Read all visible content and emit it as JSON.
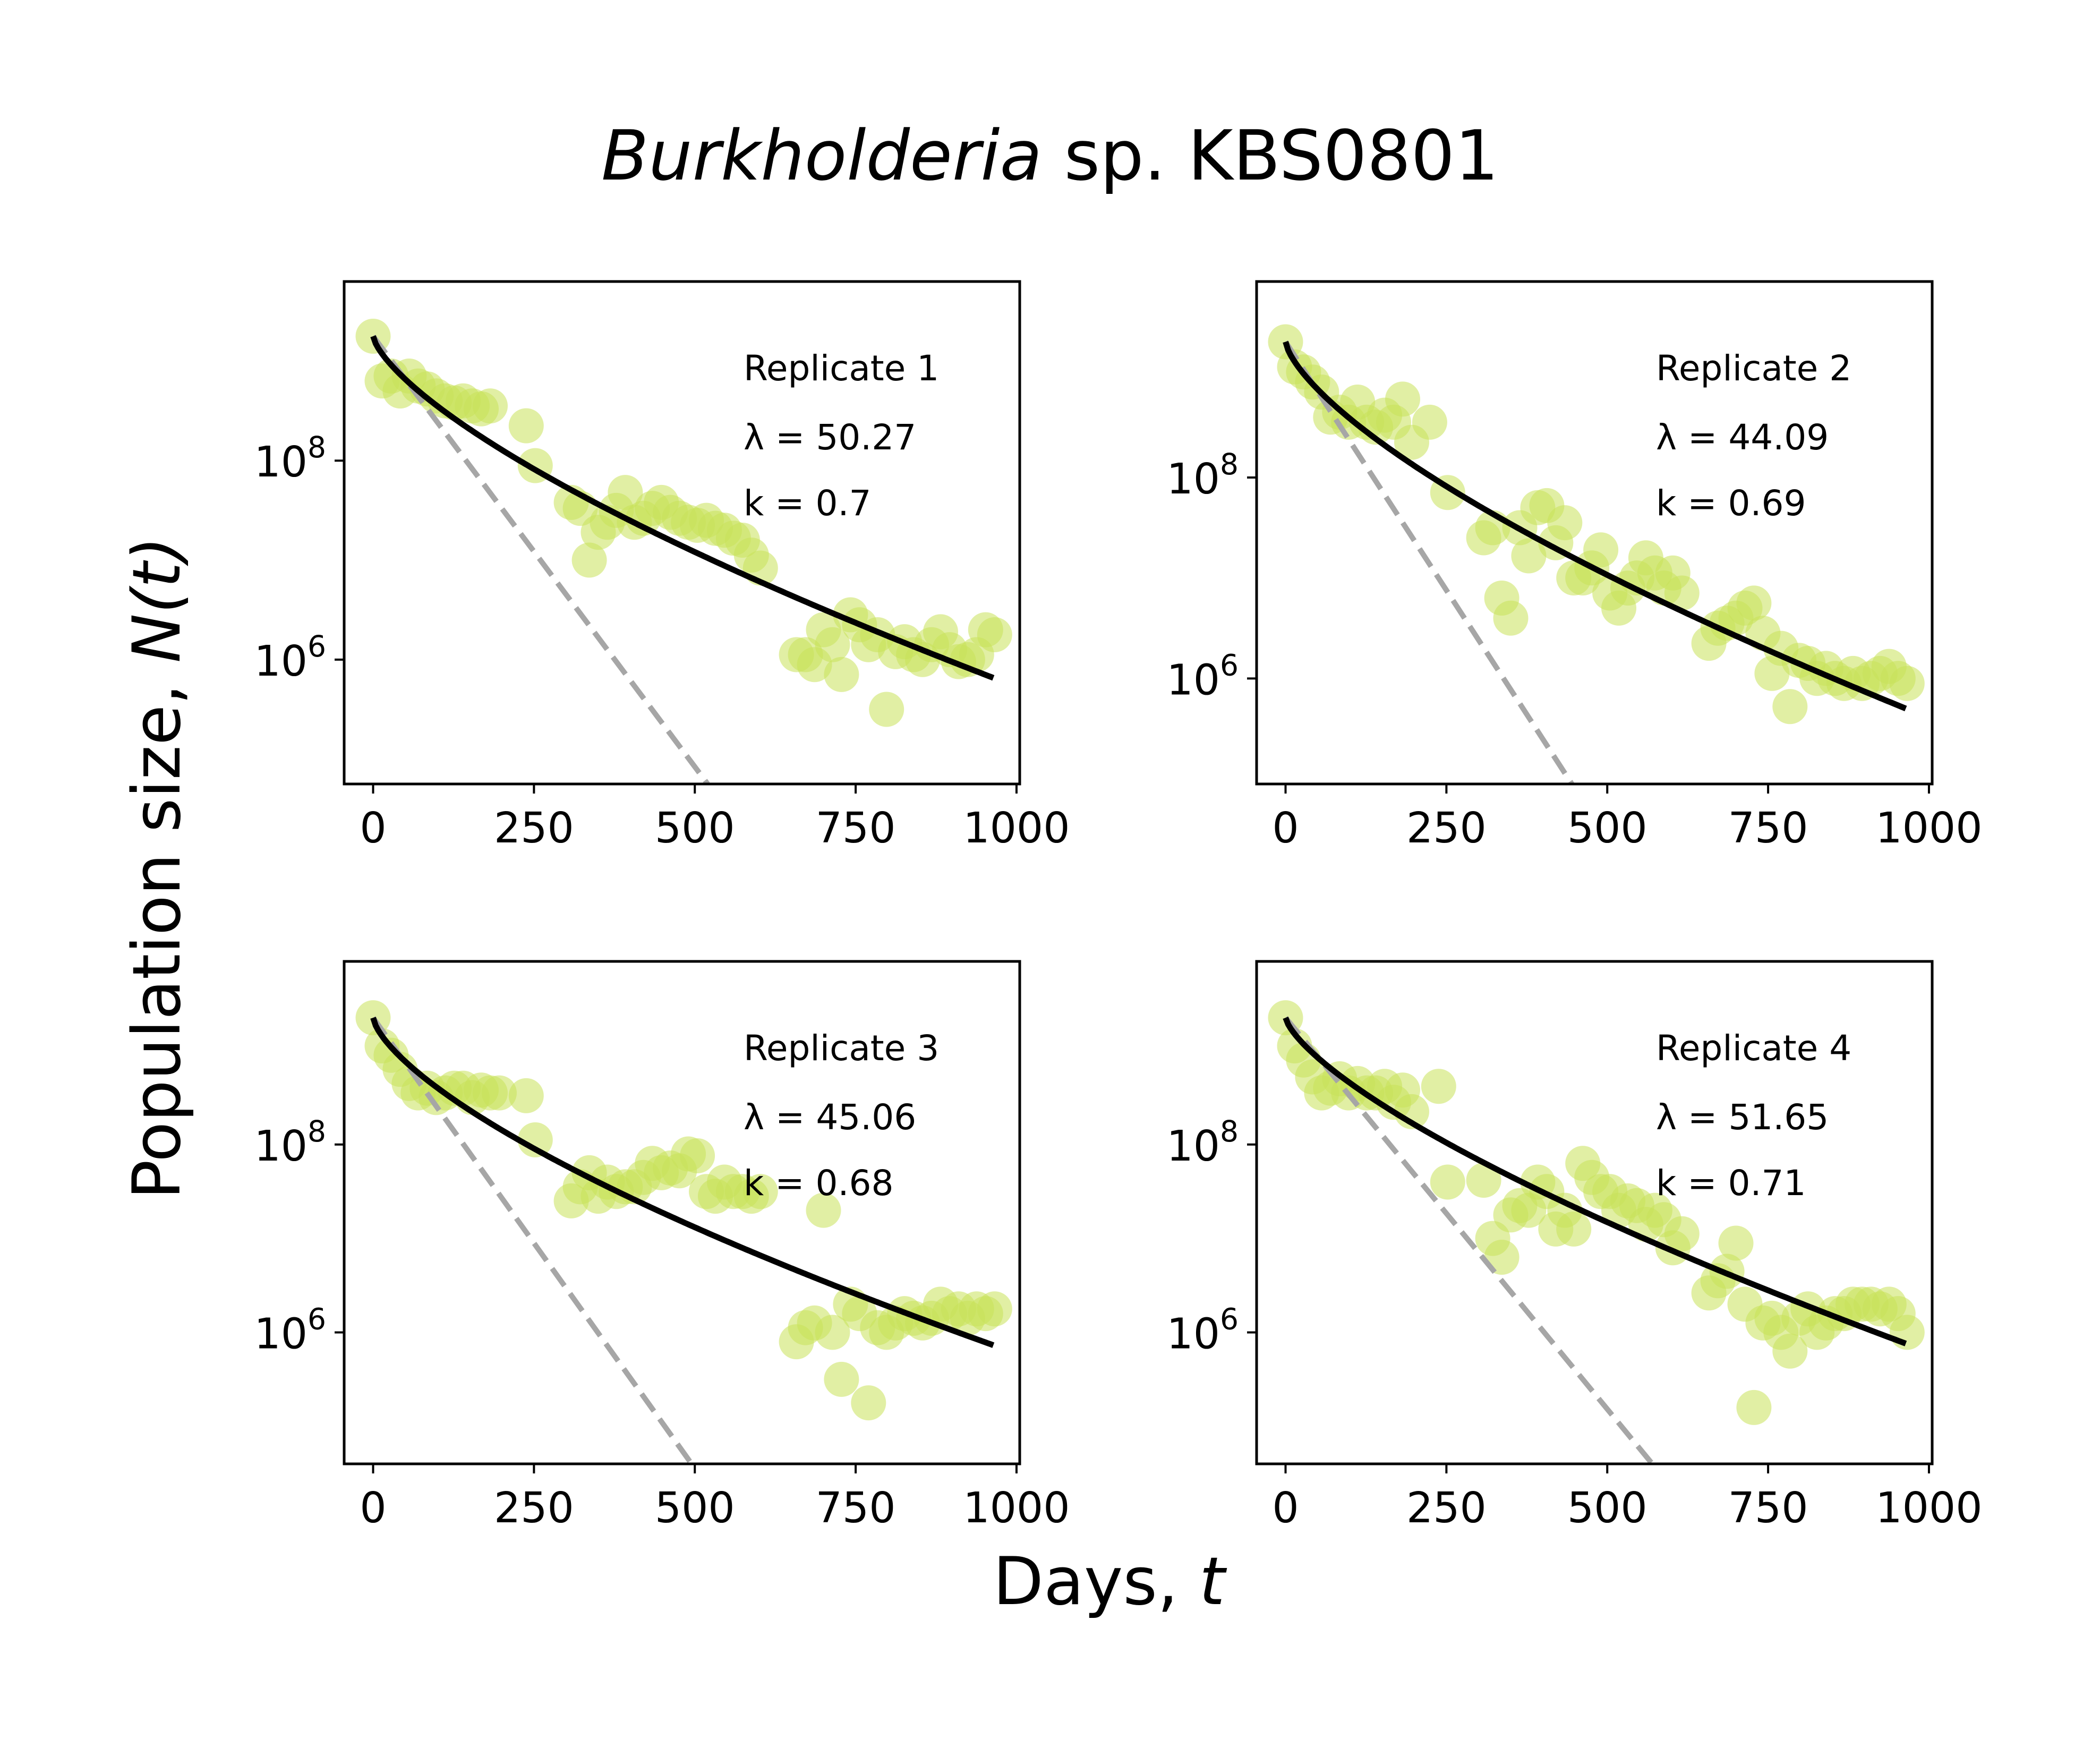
{
  "figure": {
    "title_italic": "Burkholderia",
    "title_rest": " sp. KBS0801",
    "xlabel_text": "Days, ",
    "xlabel_var": "t",
    "ylabel_text": "Population size, ",
    "ylabel_var": "N(t)"
  },
  "colors": {
    "points": "#c8e25a",
    "fit_line": "#000000",
    "exp_line": "#a6a6a6",
    "frame": "#000000"
  },
  "chart_data": [
    {
      "type": "scatter",
      "panel": "Replicate 1",
      "replicate_label": "Replicate 1",
      "lambda_label": "λ = 50.27",
      "k_label": "k = 0.7",
      "lambda": 50.27,
      "k": 0.7,
      "x_ticks": [
        0,
        250,
        500,
        750,
        1000
      ],
      "y_ticks": [
        {
          "exp": 6
        },
        {
          "exp": 8
        }
      ],
      "xlim": [
        -45,
        1005
      ],
      "ylog_lim": [
        4.75,
        9.8
      ],
      "y_scale": "log",
      "x": [
        0,
        14,
        28,
        42,
        56,
        70,
        84,
        98,
        112,
        126,
        140,
        154,
        168,
        182,
        238,
        252,
        308,
        322,
        336,
        350,
        364,
        378,
        392,
        406,
        420,
        434,
        448,
        462,
        476,
        490,
        504,
        518,
        532,
        546,
        560,
        574,
        588,
        602,
        658,
        672,
        686,
        700,
        714,
        728,
        742,
        756,
        770,
        784,
        798,
        812,
        826,
        840,
        854,
        868,
        882,
        896,
        910,
        924,
        938,
        952,
        966
      ],
      "log10_y": [
        9.25,
        8.8,
        8.85,
        8.7,
        8.85,
        8.75,
        8.72,
        8.65,
        8.6,
        8.58,
        8.6,
        8.55,
        8.52,
        8.55,
        8.35,
        7.95,
        7.58,
        7.52,
        7.0,
        7.28,
        7.38,
        7.5,
        7.68,
        7.38,
        7.42,
        7.52,
        7.58,
        7.48,
        7.42,
        7.38,
        7.35,
        7.4,
        7.32,
        7.3,
        7.22,
        7.2,
        7.05,
        6.92,
        6.05,
        6.05,
        5.95,
        6.3,
        6.15,
        5.85,
        6.45,
        6.35,
        6.15,
        6.25,
        5.5,
        6.08,
        6.18,
        6.05,
        6.0,
        6.15,
        6.28,
        6.1,
        5.98,
        6.0,
        6.05,
        6.3,
        6.25
      ],
      "exp_line_end": {
        "x": 520,
        "log10_y": 4.75
      }
    },
    {
      "type": "scatter",
      "panel": "Replicate 2",
      "replicate_label": "Replicate 2",
      "lambda_label": "λ = 44.09",
      "k_label": "k = 0.69",
      "lambda": 44.09,
      "k": 0.69,
      "x_ticks": [
        0,
        250,
        500,
        750,
        1000
      ],
      "y_ticks": [
        {
          "exp": 6
        },
        {
          "exp": 8
        }
      ],
      "xlim": [
        -45,
        1005
      ],
      "ylog_lim": [
        4.95,
        9.95
      ],
      "y_scale": "log",
      "x": [
        0,
        14,
        28,
        42,
        56,
        70,
        84,
        98,
        112,
        126,
        140,
        154,
        168,
        182,
        196,
        224,
        252,
        308,
        322,
        336,
        350,
        364,
        378,
        392,
        406,
        420,
        434,
        448,
        462,
        476,
        490,
        504,
        518,
        532,
        546,
        560,
        574,
        588,
        602,
        616,
        658,
        672,
        686,
        700,
        714,
        728,
        742,
        756,
        770,
        784,
        798,
        812,
        826,
        840,
        854,
        868,
        882,
        896,
        910,
        924,
        938,
        952,
        966
      ],
      "log10_y": [
        9.35,
        9.1,
        9.05,
        8.95,
        8.85,
        8.6,
        8.65,
        8.55,
        8.75,
        8.55,
        8.5,
        8.62,
        8.55,
        8.78,
        8.35,
        8.55,
        7.85,
        7.4,
        7.5,
        6.8,
        6.6,
        7.5,
        7.22,
        7.7,
        7.72,
        7.35,
        7.55,
        7.0,
        7.0,
        7.1,
        7.28,
        6.85,
        6.7,
        6.9,
        7.0,
        7.2,
        7.05,
        6.9,
        7.05,
        6.85,
        6.35,
        6.5,
        6.55,
        6.6,
        6.7,
        6.75,
        6.45,
        6.05,
        6.3,
        5.72,
        6.18,
        6.15,
        6.0,
        6.1,
        6.0,
        5.95,
        6.05,
        5.95,
        6.0,
        6.05,
        6.12,
        6.0,
        5.95
      ],
      "exp_line_end": {
        "x": 445,
        "log10_y": 4.95
      }
    },
    {
      "type": "scatter",
      "panel": "Replicate 3",
      "replicate_label": "Replicate 3",
      "lambda_label": "λ = 45.06",
      "k_label": "k = 0.68",
      "lambda": 45.06,
      "k": 0.68,
      "x_ticks": [
        0,
        250,
        500,
        750,
        1000
      ],
      "y_ticks": [
        {
          "exp": 6
        },
        {
          "exp": 8
        }
      ],
      "xlim": [
        -45,
        1005
      ],
      "ylog_lim": [
        4.6,
        9.95
      ],
      "y_scale": "log",
      "x": [
        0,
        14,
        28,
        42,
        56,
        70,
        84,
        98,
        112,
        126,
        140,
        154,
        168,
        182,
        196,
        238,
        252,
        308,
        322,
        336,
        350,
        364,
        378,
        392,
        406,
        420,
        434,
        448,
        462,
        476,
        490,
        504,
        518,
        532,
        546,
        560,
        574,
        588,
        602,
        658,
        672,
        686,
        700,
        714,
        728,
        742,
        756,
        770,
        784,
        798,
        812,
        826,
        840,
        854,
        868,
        882,
        896,
        910,
        924,
        938,
        952,
        966
      ],
      "log10_y": [
        9.35,
        9.05,
        8.95,
        8.8,
        8.65,
        8.55,
        8.6,
        8.5,
        8.55,
        8.6,
        8.6,
        8.5,
        8.58,
        8.55,
        8.55,
        8.52,
        8.05,
        7.4,
        7.55,
        7.7,
        7.45,
        7.6,
        7.5,
        7.55,
        7.55,
        7.65,
        7.8,
        7.7,
        7.75,
        7.72,
        7.9,
        7.88,
        7.5,
        7.45,
        7.6,
        7.5,
        7.5,
        7.45,
        7.5,
        5.9,
        6.05,
        6.1,
        7.3,
        6.0,
        5.5,
        6.3,
        6.2,
        5.25,
        6.05,
        6.0,
        6.1,
        6.2,
        6.15,
        6.1,
        6.15,
        6.3,
        6.2,
        6.25,
        6.15,
        6.25,
        6.2,
        6.25
      ],
      "exp_line_end": {
        "x": 495,
        "log10_y": 4.6
      }
    },
    {
      "type": "scatter",
      "panel": "Replicate 4",
      "replicate_label": "Replicate 4",
      "lambda_label": "λ = 51.65",
      "k_label": "k = 0.71",
      "lambda": 51.65,
      "k": 0.71,
      "x_ticks": [
        0,
        250,
        500,
        750,
        1000
      ],
      "y_ticks": [
        {
          "exp": 6
        },
        {
          "exp": 8
        }
      ],
      "xlim": [
        -45,
        1005
      ],
      "ylog_lim": [
        4.6,
        9.95
      ],
      "y_scale": "log",
      "x": [
        0,
        14,
        28,
        42,
        56,
        70,
        84,
        98,
        112,
        126,
        140,
        154,
        168,
        182,
        196,
        238,
        252,
        308,
        322,
        336,
        350,
        364,
        378,
        392,
        406,
        420,
        434,
        448,
        462,
        476,
        490,
        504,
        518,
        532,
        546,
        560,
        574,
        588,
        602,
        616,
        658,
        672,
        686,
        700,
        714,
        728,
        742,
        756,
        770,
        784,
        798,
        812,
        826,
        840,
        854,
        868,
        882,
        896,
        910,
        924,
        938,
        952,
        966
      ],
      "log10_y": [
        9.35,
        9.05,
        8.9,
        8.72,
        8.55,
        8.6,
        8.7,
        8.55,
        8.65,
        8.55,
        8.55,
        8.62,
        8.45,
        8.58,
        8.35,
        8.62,
        7.6,
        7.62,
        7.0,
        6.8,
        7.25,
        7.35,
        7.3,
        7.6,
        7.5,
        7.1,
        7.3,
        7.1,
        7.8,
        7.65,
        7.5,
        7.5,
        7.3,
        7.4,
        7.35,
        7.15,
        7.3,
        7.2,
        6.9,
        7.05,
        6.42,
        6.55,
        6.65,
        6.95,
        6.3,
        5.2,
        6.1,
        6.15,
        6.0,
        5.8,
        6.15,
        6.25,
        6.0,
        6.1,
        6.2,
        6.2,
        6.3,
        6.3,
        6.3,
        6.25,
        6.3,
        6.2,
        6.0
      ],
      "exp_line_end": {
        "x": 570,
        "log10_y": 4.6
      }
    }
  ]
}
